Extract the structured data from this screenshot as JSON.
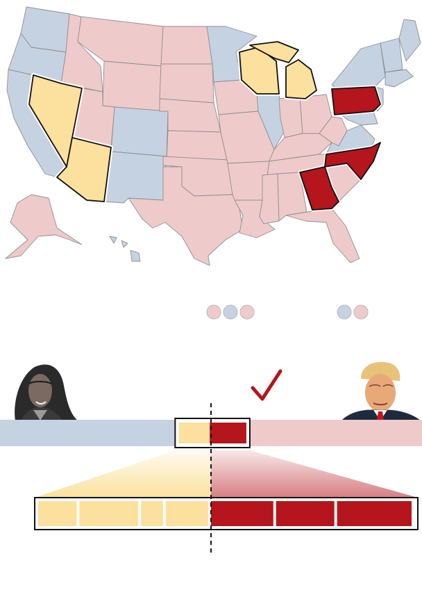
{
  "colors": {
    "dem_light": "#c5d2e2",
    "rep_light": "#efcacb",
    "swing_dem": "#fbe19d",
    "swing_rep": "#b5151c",
    "border": "#8f8f8f",
    "highlight_border": "#111111"
  },
  "map": {
    "states_rep": [
      "MT",
      "ID",
      "WY",
      "UT",
      "ND",
      "SD",
      "NE",
      "KS",
      "OK",
      "TX",
      "IA",
      "MO",
      "AR",
      "LA",
      "MS",
      "AL",
      "TN",
      "KY",
      "IN",
      "OH",
      "WV",
      "SC",
      "FL",
      "AK"
    ],
    "states_dem": [
      "WA",
      "OR",
      "CA",
      "CO",
      "NM",
      "MN",
      "IL",
      "VA",
      "NY",
      "VT",
      "NH",
      "ME",
      "MA",
      "CT",
      "RI",
      "NJ",
      "DE",
      "MD",
      "HI"
    ],
    "states_swing_dem": [
      "WI",
      "MI",
      "NV",
      "AZ"
    ],
    "states_swing_rep": [
      "PA",
      "NC",
      "GA"
    ]
  },
  "legend_dots_left": [
    "rep",
    "dem",
    "rep"
  ],
  "legend_dots_right": [
    "dem",
    "rep"
  ],
  "candidates": {
    "left": {
      "portrait": "harris-portrait",
      "party": "dem"
    },
    "right": {
      "portrait": "trump-portrait",
      "party": "rep"
    },
    "winner_mark": "checkmark-icon"
  },
  "main_bar": {
    "dem_share": 0.415,
    "swing_dem_share": 0.082,
    "swing_rep_share": 0.095,
    "rep_share": 0.408
  },
  "swing_breakdown": {
    "dem_segments": [
      10,
      15,
      6,
      11
    ],
    "rep_segments": [
      16,
      15,
      19
    ]
  }
}
